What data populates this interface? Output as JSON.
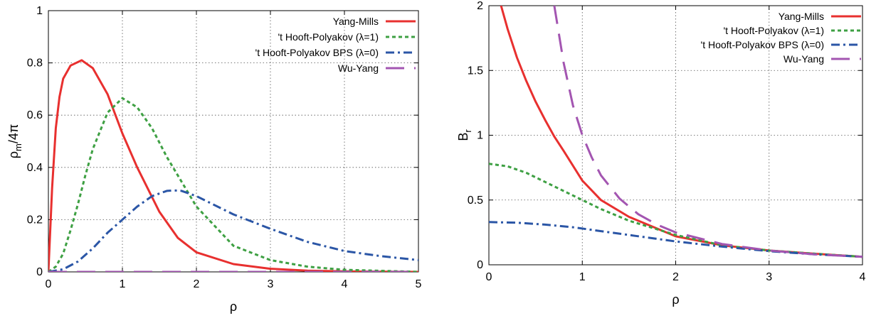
{
  "chart_data": [
    {
      "type": "line",
      "xlabel": "ρ",
      "ylabel_main": "ρ",
      "ylabel_sub": "m",
      "ylabel_tail": "/4π",
      "xlim": [
        0,
        5
      ],
      "ylim": [
        0,
        1
      ],
      "xticks": [
        "0",
        "1",
        "2",
        "3",
        "4",
        "5"
      ],
      "yticks": [
        "0",
        "0.2",
        "0.4",
        "0.6",
        "0.8",
        "1"
      ],
      "grid": true,
      "legend_position": "top-right",
      "series": [
        {
          "name": "Yang-Mills",
          "color": "#e8302f",
          "style": "solid",
          "x": [
            0,
            0.05,
            0.1,
            0.15,
            0.2,
            0.3,
            0.45,
            0.6,
            0.8,
            1.0,
            1.2,
            1.5,
            1.75,
            2.0,
            2.5,
            3.0,
            3.5,
            4.0,
            5.0
          ],
          "y": [
            0,
            0.32,
            0.55,
            0.67,
            0.74,
            0.79,
            0.81,
            0.78,
            0.68,
            0.53,
            0.4,
            0.23,
            0.13,
            0.075,
            0.03,
            0.012,
            0.005,
            0.002,
            0.0
          ]
        },
        {
          "name": "'t Hooft-Polyakov (λ=1)",
          "color": "#3ea043",
          "style": "dotted",
          "x": [
            0,
            0.1,
            0.2,
            0.3,
            0.4,
            0.5,
            0.6,
            0.8,
            1.0,
            1.2,
            1.4,
            1.6,
            2.0,
            2.5,
            3.0,
            3.5,
            4.0,
            5.0
          ],
          "y": [
            0,
            0.02,
            0.07,
            0.16,
            0.26,
            0.37,
            0.47,
            0.61,
            0.665,
            0.63,
            0.55,
            0.44,
            0.25,
            0.1,
            0.045,
            0.02,
            0.008,
            0.0
          ]
        },
        {
          "name": "'t Hooft-Polyakov BPS (λ=0)",
          "color": "#2b56a6",
          "style": "dash-dot",
          "x": [
            0,
            0.2,
            0.4,
            0.6,
            0.8,
            1.0,
            1.2,
            1.4,
            1.6,
            1.7,
            1.8,
            2.0,
            2.5,
            3.0,
            3.5,
            4.0,
            4.5,
            5.0
          ],
          "y": [
            0,
            0.01,
            0.04,
            0.09,
            0.15,
            0.2,
            0.25,
            0.29,
            0.31,
            0.312,
            0.31,
            0.29,
            0.22,
            0.165,
            0.115,
            0.08,
            0.06,
            0.045
          ]
        },
        {
          "name": "Wu-Yang",
          "color": "#a355b1",
          "style": "long-dash",
          "x": [
            0,
            5
          ],
          "y": [
            0,
            0
          ]
        }
      ]
    },
    {
      "type": "line",
      "xlabel": "ρ",
      "ylabel_main": "B",
      "ylabel_sub": "r",
      "ylabel_tail": "",
      "xlim": [
        0,
        4
      ],
      "ylim": [
        0,
        2
      ],
      "xticks": [
        "0",
        "1",
        "2",
        "3",
        "4"
      ],
      "yticks": [
        "0",
        "0.5",
        "1",
        "1.5",
        "2"
      ],
      "grid": true,
      "legend_position": "top-right",
      "series": [
        {
          "name": "Yang-Mills",
          "color": "#e8302f",
          "style": "solid",
          "x": [
            0.13,
            0.2,
            0.3,
            0.4,
            0.5,
            0.6,
            0.7,
            0.8,
            1.0,
            1.2,
            1.5,
            2.0,
            2.5,
            3.0,
            3.5,
            4.0
          ],
          "y": [
            2.0,
            1.82,
            1.6,
            1.42,
            1.26,
            1.12,
            0.99,
            0.88,
            0.65,
            0.5,
            0.37,
            0.22,
            0.15,
            0.11,
            0.085,
            0.062
          ]
        },
        {
          "name": "'t Hooft-Polyakov (λ=1)",
          "color": "#3ea043",
          "style": "dotted",
          "x": [
            0,
            0.2,
            0.4,
            0.6,
            0.8,
            1.0,
            1.2,
            1.5,
            2.0,
            2.5,
            3.0,
            3.5,
            4.0
          ],
          "y": [
            0.78,
            0.76,
            0.71,
            0.64,
            0.57,
            0.5,
            0.43,
            0.34,
            0.23,
            0.15,
            0.11,
            0.085,
            0.062
          ]
        },
        {
          "name": "'t Hooft-Polyakov BPS (λ=0)",
          "color": "#2b56a6",
          "style": "dash-dot",
          "x": [
            0,
            0.3,
            0.6,
            0.9,
            1.2,
            1.5,
            2.0,
            2.5,
            3.0,
            3.5,
            4.0
          ],
          "y": [
            0.33,
            0.325,
            0.31,
            0.29,
            0.26,
            0.23,
            0.18,
            0.14,
            0.105,
            0.08,
            0.062
          ]
        },
        {
          "name": "Wu-Yang",
          "color": "#a355b1",
          "style": "long-dash",
          "x": [
            0.7,
            0.8,
            0.9,
            1.0,
            1.1,
            1.2,
            1.4,
            1.6,
            1.8,
            2.0,
            2.5,
            3.0,
            3.5,
            4.0
          ],
          "y": [
            2.0,
            1.56,
            1.23,
            1.0,
            0.83,
            0.69,
            0.51,
            0.39,
            0.31,
            0.25,
            0.16,
            0.11,
            0.08,
            0.062
          ]
        }
      ]
    }
  ]
}
